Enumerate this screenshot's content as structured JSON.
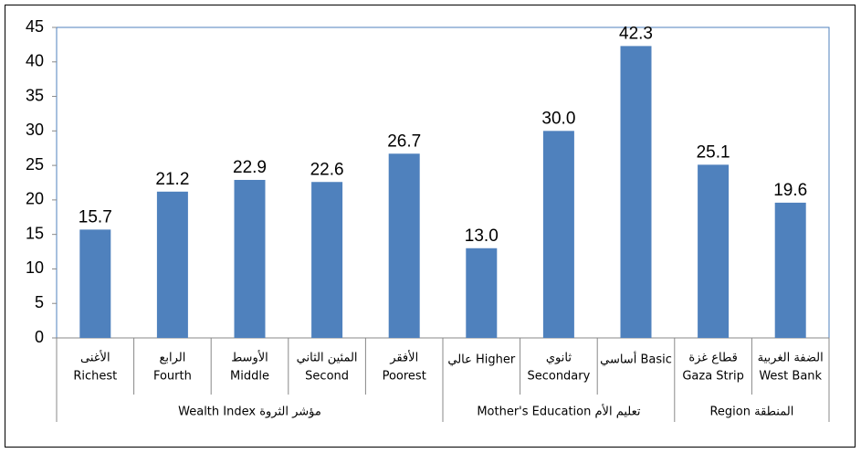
{
  "chart_data": {
    "type": "bar",
    "groups": [
      {
        "label": "Wealth Index مؤشر الثروة",
        "categories": [
          [
            "الأغنى",
            "Richest"
          ],
          [
            "الرابع",
            "Fourth"
          ],
          [
            "الأوسط",
            "Middle"
          ],
          [
            "المئين الثاني",
            "Second"
          ],
          [
            "الأفقر",
            "Poorest"
          ]
        ]
      },
      {
        "label": "Mother's Education تعليم الأم",
        "categories": [
          [
            "عالي Higher"
          ],
          [
            "ثانوي",
            "Secondary"
          ],
          [
            "أساسي Basic"
          ]
        ]
      },
      {
        "label": "Region المنطقة",
        "categories": [
          [
            "قطاع غزة",
            "Gaza Strip"
          ],
          [
            "الضفة الغربية",
            "West Bank"
          ]
        ]
      }
    ],
    "values": [
      15.7,
      21.2,
      22.9,
      22.6,
      26.7,
      13.0,
      30.0,
      42.3,
      25.1,
      19.6
    ],
    "value_labels": [
      "15.7",
      "21.2",
      "22.9",
      "22.6",
      "26.7",
      "13.0",
      "30.0",
      "42.3",
      "25.1",
      "19.6"
    ],
    "color": "#4f81bd",
    "ylim": [
      0,
      45
    ],
    "yticks": [
      0,
      5,
      10,
      15,
      20,
      25,
      30,
      35,
      40,
      45
    ],
    "grid": false
  }
}
